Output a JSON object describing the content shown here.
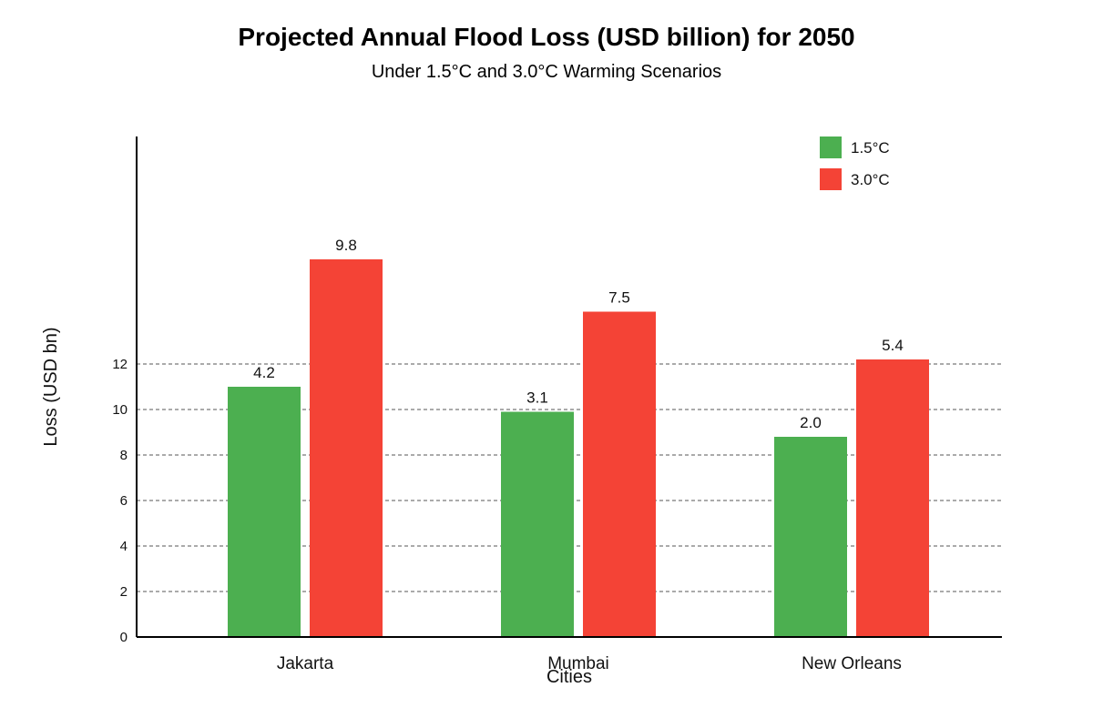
{
  "chart_data": {
    "type": "bar",
    "title": "Projected Annual Flood Loss (USD billion) for 2050",
    "subtitle": "Under 1.5°C and 3.0°C Warming Scenarios",
    "xlabel": "Cities",
    "ylabel": "Loss (USD bn)",
    "categories": [
      "Jakarta",
      "Mumbai",
      "New Orleans"
    ],
    "series": [
      {
        "name": "1.5°C",
        "color": "#4caf50",
        "values": [
          4.2,
          3.1,
          2.0
        ]
      },
      {
        "name": "3.0°C",
        "color": "#f44336",
        "values": [
          9.8,
          7.5,
          5.4
        ]
      }
    ],
    "yticks": [
      0,
      2,
      4,
      6,
      8,
      10,
      12
    ],
    "grid": true,
    "grid_style": "dashed",
    "legend": "top-right"
  }
}
